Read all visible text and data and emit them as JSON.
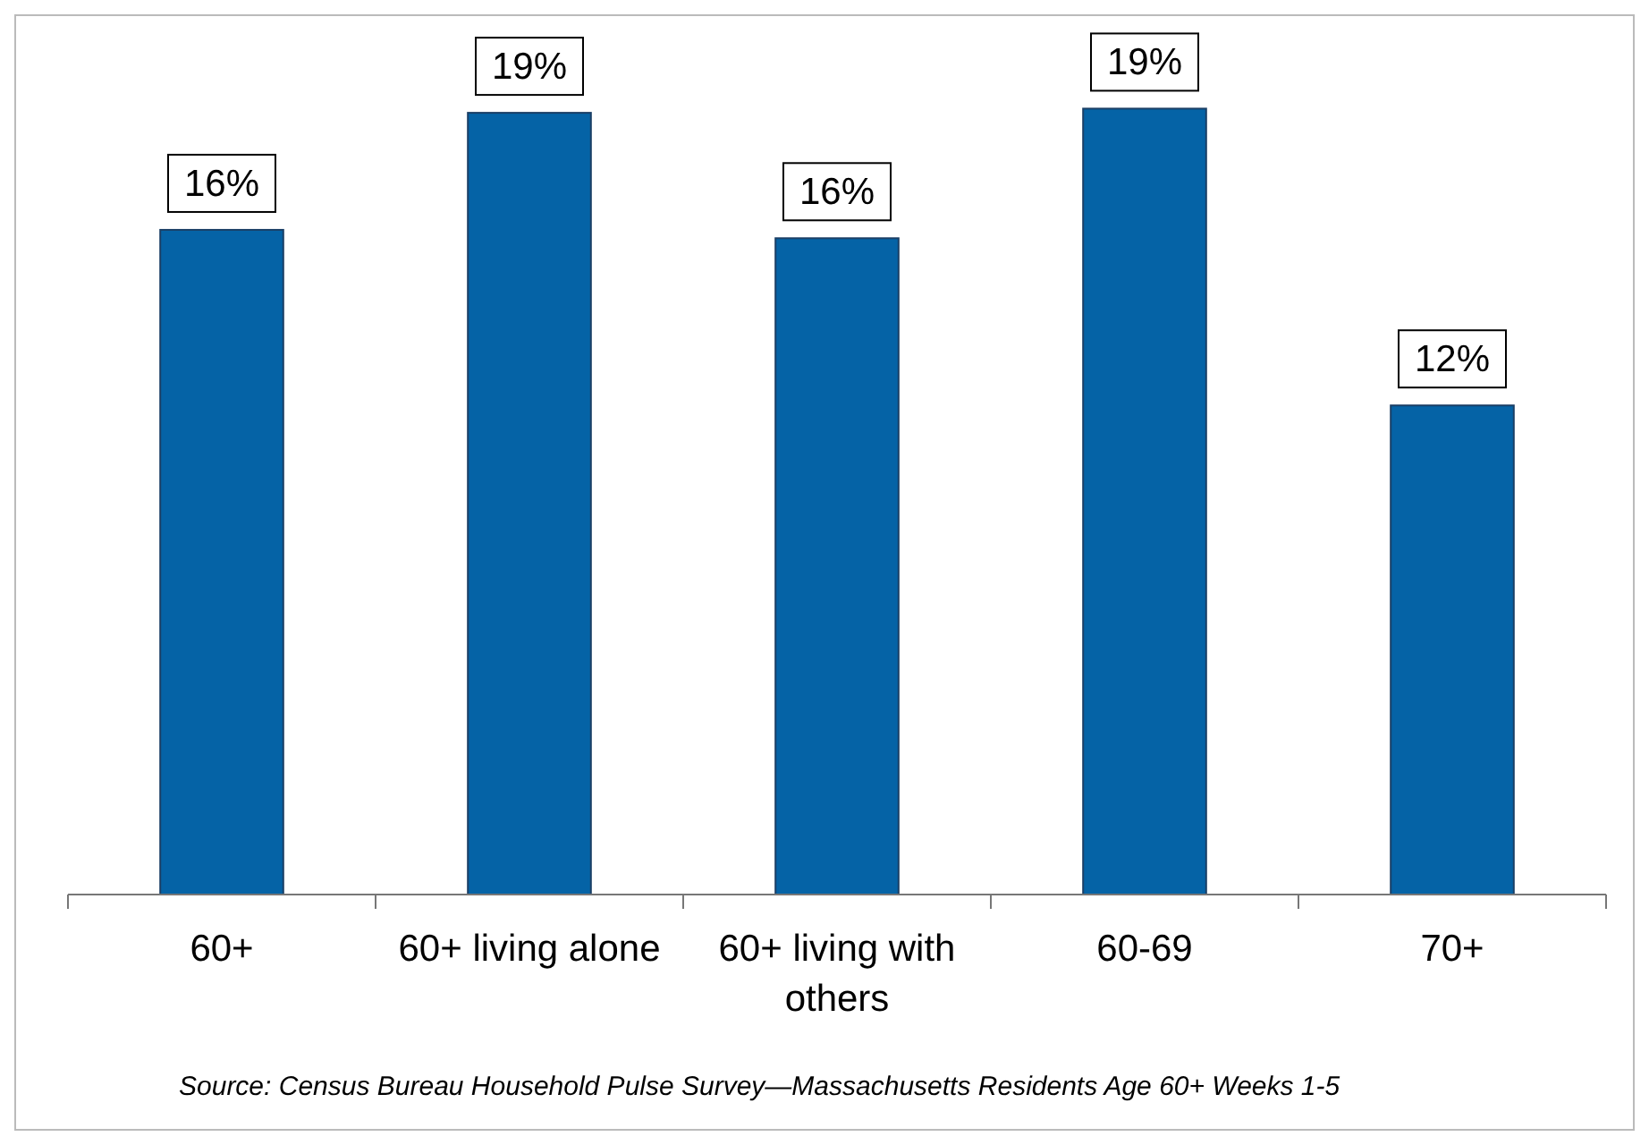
{
  "chart_data": {
    "type": "bar",
    "categories": [
      "60+",
      "60+ living alone",
      "60+ living with others",
      "60-69",
      "70+"
    ],
    "values": [
      15.9,
      18.7,
      15.7,
      18.8,
      11.7
    ],
    "value_labels": [
      "16%",
      "19%",
      "16%",
      "19%",
      "12%"
    ],
    "color": "#0563a6",
    "annotations": [
      "Source: Census Bureau Household Pulse Survey—Massachusetts Residents Age 60+ Weeks 1-5"
    ]
  }
}
